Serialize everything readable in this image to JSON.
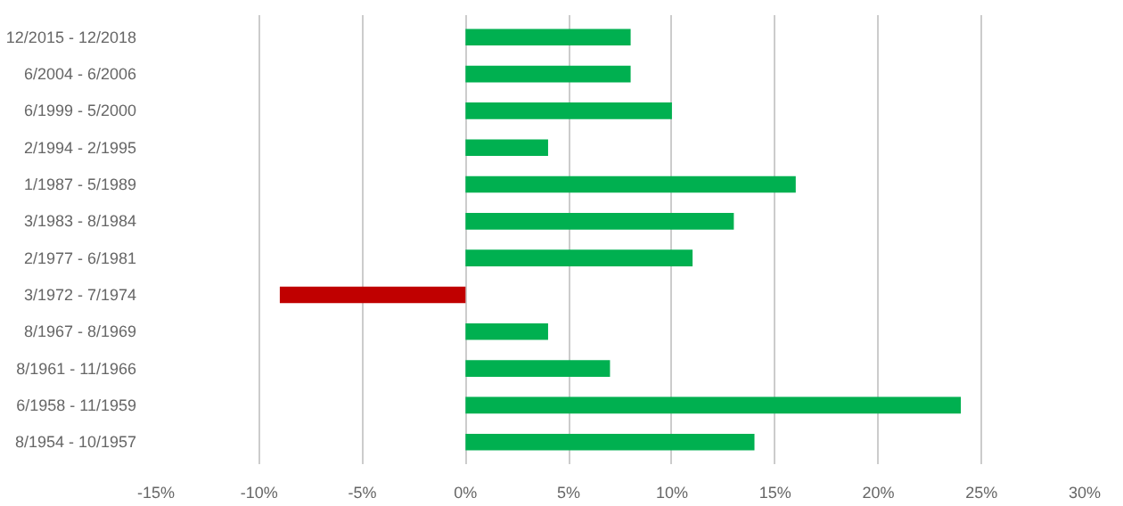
{
  "chart_data": {
    "type": "bar",
    "orientation": "horizontal",
    "categories": [
      "12/2015 - 12/2018",
      "6/2004 - 6/2006",
      "6/1999 - 5/2000",
      "2/1994 - 2/1995",
      "1/1987 - 5/1989",
      "3/1983 - 8/1984",
      "2/1977 - 6/1981",
      "3/1972 - 7/1974",
      "8/1967 - 8/1969",
      "8/1961 - 11/1966",
      "6/1958 - 11/1959",
      "8/1954 - 10/1957"
    ],
    "values": [
      8,
      8,
      10,
      4,
      16,
      13,
      11,
      -9,
      4,
      7,
      24,
      14
    ],
    "colors": [
      "#00b050",
      "#00b050",
      "#00b050",
      "#00b050",
      "#00b050",
      "#00b050",
      "#00b050",
      "#c00000",
      "#00b050",
      "#00b050",
      "#00b050",
      "#00b050"
    ],
    "xlim": [
      -15,
      30
    ],
    "xticks": [
      {
        "value": -15,
        "label": "-15%"
      },
      {
        "value": -10,
        "label": "-10%"
      },
      {
        "value": -5,
        "label": "-5%"
      },
      {
        "value": 0,
        "label": "0%"
      },
      {
        "value": 5,
        "label": "5%"
      },
      {
        "value": 10,
        "label": "10%"
      },
      {
        "value": 15,
        "label": "15%"
      },
      {
        "value": 20,
        "label": "20%"
      },
      {
        "value": 25,
        "label": "25%"
      },
      {
        "value": 30,
        "label": "30%"
      }
    ],
    "grid": "x"
  }
}
